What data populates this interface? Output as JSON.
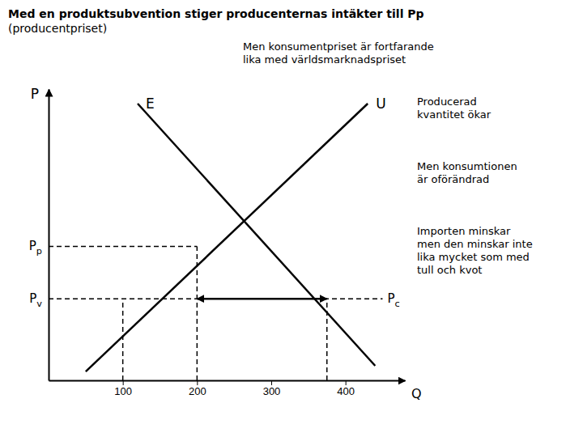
{
  "chart_data": {
    "type": "line",
    "title": "Med en produktsubvention stiger producenternas intäkter till Pp",
    "subtitle": "(producentpriset)",
    "x_label": "Q",
    "y_label": "P",
    "xlim": [
      0,
      480
    ],
    "ylim": [
      0,
      10
    ],
    "xticks": [
      100,
      200,
      300,
      400
    ],
    "tick_labels": "x",
    "series": [
      {
        "name": "U",
        "color": "#000000",
        "x": [
          50,
          430
        ],
        "values": [
          0.3,
          9.5
        ]
      },
      {
        "name": "E",
        "color": "#000000",
        "x": [
          120,
          440
        ],
        "values": [
          9.5,
          0.5
        ]
      }
    ],
    "price_levels": [
      {
        "label": "Pp",
        "value": 4.6,
        "x_end": 200,
        "x_drops": [
          200
        ]
      },
      {
        "label": "Pv",
        "value": 2.8,
        "x_end": 450,
        "x_drops": [
          100,
          375
        ],
        "right_label": "Pc"
      }
    ],
    "quantity_change": {
      "from": 200,
      "to": 375,
      "at": 2.8
    },
    "annotations": [
      "Men konsumentpriset är fortfarande\nlika med världsmarknadspriset",
      "Producerad\nkvantitet ökar",
      "Men konsumtionen\när oförändrad",
      "Importen minskar\nmen den minskar inte\nlika mycket som med\ntull och kvot"
    ]
  }
}
